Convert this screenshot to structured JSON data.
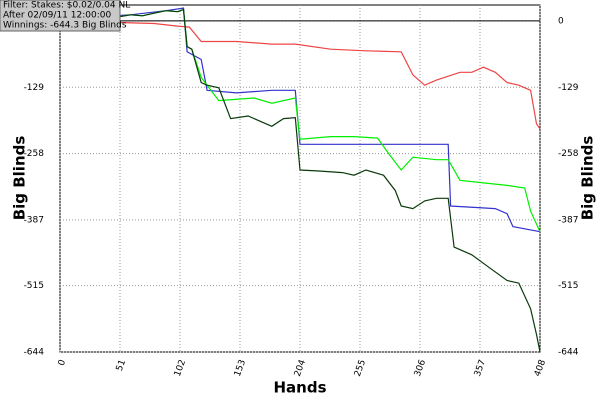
{
  "chart_data": {
    "type": "line",
    "annotations": [
      "Filter: Stakes: $0.02/0.04 NL",
      "After 02/09/11 12:00:00",
      "Winnings: -644.3 Big Blinds"
    ],
    "x_label": "Hands",
    "y_label": "Big Blinds",
    "xlim": [
      0,
      408
    ],
    "xticks": [
      0,
      51,
      102,
      153,
      204,
      255,
      306,
      357,
      408
    ],
    "ylim": [
      -644,
      31
    ],
    "yticks": [
      0,
      -129,
      -258,
      -387,
      -515,
      -644
    ],
    "grid": true,
    "series": [
      {
        "color": "#ee4444",
        "x": [
          0,
          50,
          80,
          100,
          110,
          120,
          150,
          180,
          200,
          230,
          260,
          290,
          300,
          310,
          320,
          340,
          350,
          360,
          370,
          380,
          390,
          400,
          405,
          408
        ],
        "values": [
          0,
          -3,
          -5,
          -10,
          -12,
          -40,
          -40,
          -45,
          -45,
          -55,
          -58,
          -60,
          -105,
          -125,
          -115,
          -100,
          -100,
          -90,
          -100,
          -120,
          -125,
          -135,
          -200,
          -210
        ]
      },
      {
        "color": "#3333cc",
        "x": [
          0,
          30,
          60,
          90,
          105,
          108,
          120,
          125,
          150,
          180,
          200,
          204,
          250,
          280,
          330,
          332,
          370,
          380,
          385,
          408
        ],
        "values": [
          0,
          8,
          12,
          20,
          25,
          -60,
          -75,
          -135,
          -140,
          -135,
          -135,
          -240,
          -240,
          -240,
          -240,
          -360,
          -365,
          -375,
          -400,
          -410
        ]
      },
      {
        "color": "#00ee00",
        "x": [
          0,
          10,
          20,
          30,
          40,
          50,
          60,
          70,
          80,
          90,
          100,
          105,
          108,
          112,
          120,
          135,
          165,
          180,
          200,
          204,
          230,
          250,
          270,
          280,
          290,
          300,
          320,
          330,
          340,
          360,
          380,
          395,
          400,
          408
        ],
        "values": [
          0,
          -3,
          2,
          8,
          5,
          8,
          12,
          10,
          15,
          20,
          18,
          22,
          -50,
          -55,
          -110,
          -155,
          -150,
          -160,
          -150,
          -230,
          -225,
          -225,
          -228,
          -260,
          -290,
          -265,
          -270,
          -270,
          -310,
          -315,
          -320,
          -325,
          -370,
          -410
        ]
      },
      {
        "color": "#0a3a0a",
        "x": [
          0,
          10,
          20,
          30,
          40,
          50,
          60,
          70,
          80,
          90,
          100,
          105,
          108,
          112,
          120,
          125,
          135,
          145,
          160,
          170,
          180,
          190,
          200,
          204,
          220,
          240,
          250,
          260,
          275,
          285,
          290,
          300,
          310,
          320,
          330,
          335,
          350,
          365,
          380,
          390,
          400,
          405,
          408
        ],
        "values": [
          0,
          -3,
          2,
          8,
          5,
          8,
          12,
          10,
          15,
          20,
          18,
          22,
          -50,
          -55,
          -120,
          -125,
          -130,
          -190,
          -185,
          -195,
          -205,
          -190,
          -188,
          -290,
          -292,
          -295,
          -300,
          -290,
          -300,
          -330,
          -360,
          -365,
          -350,
          -345,
          -345,
          -440,
          -455,
          -480,
          -505,
          -510,
          -560,
          -610,
          -644
        ]
      }
    ]
  }
}
